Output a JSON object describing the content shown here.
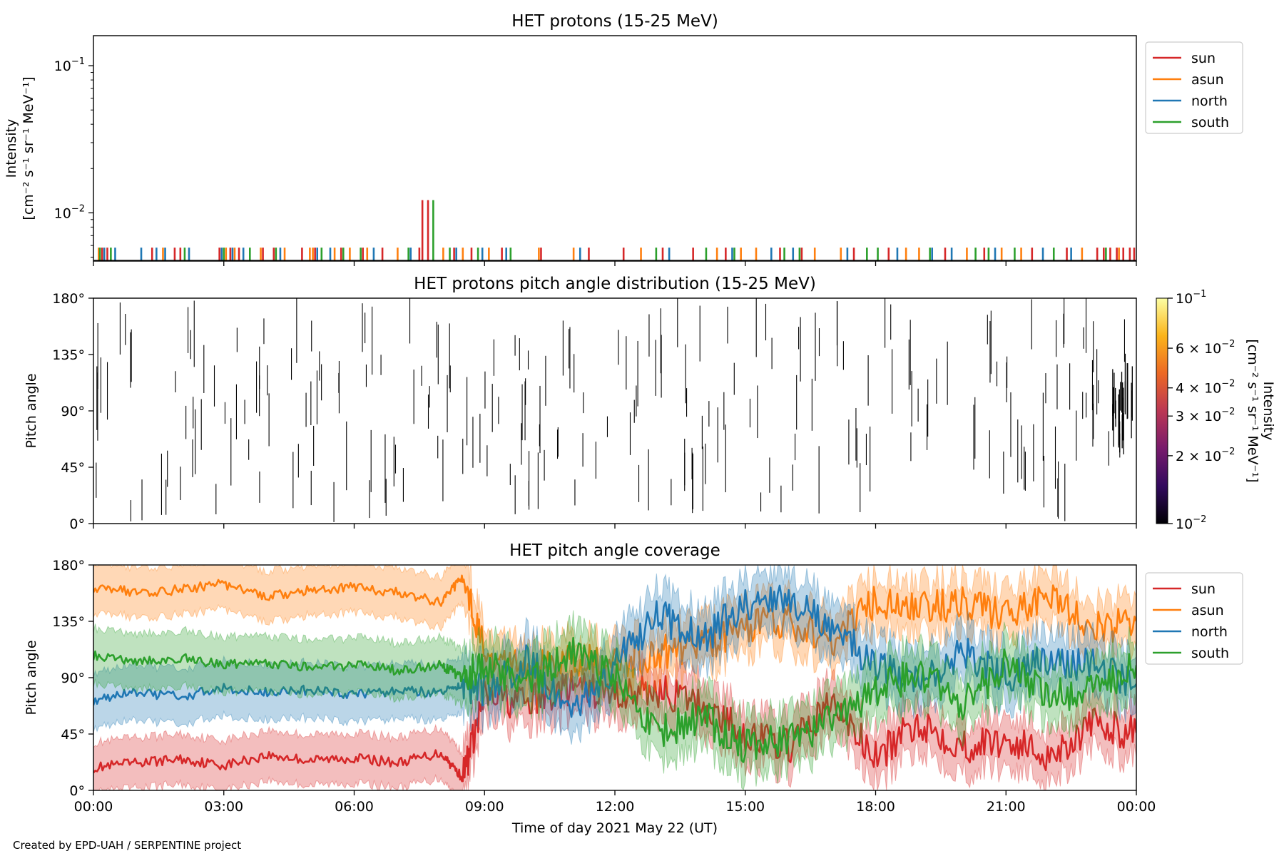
{
  "footer": {
    "credit": "Created by EPD-UAH / SERPENTINE project"
  },
  "x_axis": {
    "label": "Time of day 2021 May 22 (UT)",
    "ticks": [
      "00:00",
      "03:00",
      "06:00",
      "09:00",
      "12:00",
      "15:00",
      "18:00",
      "21:00",
      "00:00"
    ],
    "range_hours": [
      0,
      24
    ]
  },
  "colors": {
    "sun": "#d62728",
    "asun": "#ff7f0e",
    "north": "#1f77b4",
    "south": "#2ca02c"
  },
  "legend_items": [
    "sun",
    "asun",
    "north",
    "south"
  ],
  "chart_data": [
    {
      "type": "bar",
      "title": "HET protons (15-25 MeV)",
      "ylabel_lines": [
        "Intensity",
        "[cm⁻² s⁻¹ sr⁻¹ MeV⁻¹]"
      ],
      "yscale": "log",
      "ylim": [
        0.0047,
        0.16
      ],
      "yticks": [
        {
          "value": 0.1,
          "base": "10",
          "exp": "−1"
        },
        {
          "value": 0.01,
          "base": "10",
          "exp": "−2"
        }
      ],
      "baseline_level": 0.0058,
      "legend_position": "upper-right outside",
      "series": [
        {
          "name": "sun",
          "color": "#d62728",
          "x": [
            0.2,
            0.32,
            1.35,
            1.87,
            2.0,
            2.9,
            3.15,
            3.35,
            3.9,
            4.15,
            4.8,
            5.1,
            5.7,
            6.2,
            6.65,
            7.5,
            7.57,
            7.7,
            8.3,
            8.7,
            9.4,
            10.3,
            11.4,
            12.2,
            13.1,
            13.8,
            14.55,
            15.8,
            16.3,
            17.5,
            18.3,
            19.6,
            20.5,
            21.6,
            22.4,
            23.1,
            23.25,
            23.4,
            23.55,
            23.7,
            23.85,
            23.95
          ],
          "y": [
            0.0058,
            0.0058,
            0.0058,
            0.0058,
            0.0058,
            0.0058,
            0.0058,
            0.0058,
            0.0058,
            0.0058,
            0.0058,
            0.0058,
            0.0058,
            0.0058,
            0.0058,
            0.0058,
            0.0122,
            0.0122,
            0.0058,
            0.0058,
            0.0058,
            0.0058,
            0.0058,
            0.0058,
            0.0058,
            0.0058,
            0.0058,
            0.0058,
            0.0058,
            0.0058,
            0.0058,
            0.0058,
            0.0058,
            0.0058,
            0.0058,
            0.0058,
            0.0058,
            0.0058,
            0.0058,
            0.0058,
            0.0058,
            0.0058
          ]
        },
        {
          "name": "asun",
          "color": "#ff7f0e",
          "x": [
            0.12,
            1.6,
            3.05,
            3.25,
            3.85,
            4.4,
            4.98,
            5.05,
            5.55,
            5.9,
            6.3,
            7.0,
            8.05,
            8.5,
            9.1,
            10.25,
            11.05,
            12.6,
            14.35,
            14.9,
            15.25,
            16.6,
            17.2,
            18.7,
            19.0,
            20.1,
            20.9,
            21.35,
            22.75,
            23.6
          ],
          "y": [
            0.0058,
            0.0058,
            0.0058,
            0.0058,
            0.0058,
            0.0058,
            0.0058,
            0.0058,
            0.0058,
            0.0058,
            0.0058,
            0.0058,
            0.0058,
            0.0058,
            0.0058,
            0.0058,
            0.0058,
            0.0058,
            0.0058,
            0.0058,
            0.0058,
            0.0058,
            0.0058,
            0.0058,
            0.0058,
            0.0058,
            0.0058,
            0.0058,
            0.0058,
            0.0058
          ]
        },
        {
          "name": "north",
          "color": "#1f77b4",
          "x": [
            0.25,
            0.5,
            1.1,
            1.45,
            1.65,
            2.2,
            2.95,
            3.2,
            3.45,
            4.3,
            5.15,
            5.45,
            6.45,
            7.3,
            8.35,
            8.95,
            9.5,
            11.2,
            13.25,
            14.7,
            15.6,
            16.1,
            17.35,
            18.5,
            19.3,
            19.75,
            20.75,
            21.85,
            22.5
          ],
          "y": [
            0.0058,
            0.0058,
            0.0058,
            0.0058,
            0.0058,
            0.0058,
            0.0058,
            0.0058,
            0.0058,
            0.0058,
            0.0058,
            0.0058,
            0.0058,
            0.0058,
            0.0058,
            0.0058,
            0.0058,
            0.0058,
            0.0058,
            0.0058,
            0.0058,
            0.0058,
            0.0058,
            0.0058,
            0.0058,
            0.0058,
            0.0058,
            0.0058,
            0.0058
          ]
        },
        {
          "name": "south",
          "color": "#2ca02c",
          "x": [
            0.15,
            0.4,
            2.1,
            3.0,
            3.6,
            4.2,
            5.25,
            5.75,
            6.15,
            7.25,
            7.82,
            8.2,
            8.85,
            9.6,
            12.95,
            14.1,
            14.75,
            15.9,
            16.25,
            17.8,
            18.05,
            19.25,
            20.3,
            20.6,
            21.2,
            22.1,
            23.3
          ],
          "y": [
            0.0058,
            0.0058,
            0.0058,
            0.0058,
            0.0058,
            0.0058,
            0.0058,
            0.0058,
            0.0058,
            0.0058,
            0.0122,
            0.0058,
            0.0058,
            0.0058,
            0.0058,
            0.0058,
            0.0058,
            0.0058,
            0.0058,
            0.0058,
            0.0058,
            0.0058,
            0.0058,
            0.0058,
            0.0058,
            0.0058,
            0.0058
          ]
        }
      ]
    },
    {
      "type": "heatmap",
      "title": "HET protons pitch angle distribution (15-25 MeV)",
      "ylabel": "Pitch angle",
      "ylim": [
        0,
        180
      ],
      "yticks": [
        "0°",
        "45°",
        "90°",
        "135°",
        "180°"
      ],
      "colorbar": {
        "label_lines": [
          "Intensity",
          "[cm⁻² s⁻¹ sr⁻¹ MeV⁻¹]"
        ],
        "scale": "log",
        "range": [
          0.01,
          0.1
        ],
        "ticks": [
          {
            "value": 0.1,
            "text": "10",
            "exp": "−1"
          },
          {
            "value": 0.06,
            "text": "6 × 10",
            "exp": "−2"
          },
          {
            "value": 0.04,
            "text": "4 × 10",
            "exp": "−2"
          },
          {
            "value": 0.03,
            "text": "3 × 10",
            "exp": "−2"
          },
          {
            "value": 0.02,
            "text": "2 × 10",
            "exp": "−2"
          },
          {
            "value": 0.01,
            "text": "10",
            "exp": "−2"
          }
        ],
        "colormap": [
          "#000004",
          "#320a5e",
          "#781b6c",
          "#bb3754",
          "#ec6824",
          "#fbb41a",
          "#fcffa4"
        ]
      },
      "segments_note": "thin vertical streaks at individual hours spanning pitch-angle ranges"
    },
    {
      "type": "line",
      "title": "HET pitch angle coverage",
      "ylabel": "Pitch angle",
      "ylim": [
        0,
        180
      ],
      "yticks": [
        "0°",
        "45°",
        "90°",
        "135°",
        "180°"
      ],
      "legend_position": "upper-right outside",
      "series": [
        {
          "name": "sun",
          "color": "#d62728",
          "halfwidth": 20,
          "x": [
            0,
            1,
            2,
            3,
            4,
            5,
            6,
            7,
            8,
            8.5,
            9,
            10,
            11,
            12,
            13,
            14,
            15,
            16,
            17,
            18,
            19,
            20,
            21,
            22,
            23,
            24
          ],
          "y": [
            18,
            22,
            25,
            20,
            28,
            24,
            26,
            22,
            30,
            10,
            75,
            70,
            82,
            76,
            80,
            68,
            45,
            35,
            70,
            25,
            55,
            35,
            40,
            28,
            52,
            46
          ]
        },
        {
          "name": "asun",
          "color": "#ff7f0e",
          "halfwidth": 20,
          "x": [
            0,
            1,
            2,
            3,
            4,
            5,
            6,
            7,
            8,
            8.5,
            9,
            10,
            11,
            12,
            13,
            14,
            15,
            16,
            17,
            18,
            19,
            20,
            21,
            22,
            23,
            24
          ],
          "y": [
            162,
            158,
            160,
            165,
            155,
            160,
            162,
            158,
            150,
            170,
            110,
            95,
            105,
            100,
            110,
            115,
            130,
            135,
            118,
            150,
            145,
            150,
            140,
            155,
            130,
            135
          ]
        },
        {
          "name": "north",
          "color": "#1f77b4",
          "halfwidth": 22,
          "x": [
            0,
            1,
            2,
            3,
            4,
            5,
            6,
            7,
            8,
            8.5,
            9,
            10,
            11,
            12,
            13,
            14,
            15,
            16,
            17,
            18,
            19,
            20,
            21,
            22,
            23,
            24
          ],
          "y": [
            72,
            78,
            75,
            82,
            78,
            80,
            76,
            80,
            78,
            85,
            80,
            105,
            60,
            100,
            140,
            120,
            150,
            150,
            130,
            100,
            85,
            110,
            90,
            105,
            100,
            85
          ]
        },
        {
          "name": "south",
          "color": "#2ca02c",
          "halfwidth": 22,
          "x": [
            0,
            1,
            2,
            3,
            4,
            5,
            6,
            7,
            8,
            8.5,
            9,
            10,
            11,
            12,
            13,
            14,
            15,
            16,
            17,
            18,
            19,
            20,
            21,
            22,
            23,
            24
          ],
          "y": [
            108,
            104,
            106,
            100,
            102,
            98,
            100,
            96,
            100,
            90,
            100,
            85,
            110,
            90,
            45,
            60,
            35,
            40,
            55,
            80,
            95,
            70,
            100,
            75,
            80,
            100
          ]
        }
      ]
    }
  ]
}
